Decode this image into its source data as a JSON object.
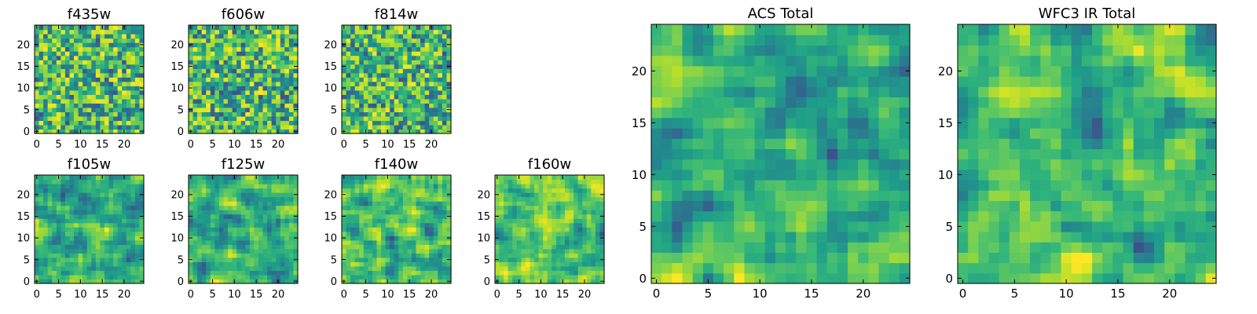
{
  "chart_data": [
    {
      "type": "heatmap",
      "title": "f435w",
      "xticks": [
        "0",
        "5",
        "10",
        "15",
        "20"
      ],
      "yticks": [
        "0",
        "5",
        "10",
        "15",
        "20"
      ],
      "xlim": [
        0,
        24
      ],
      "ylim": [
        0,
        24
      ],
      "grid": false,
      "colormap": "viridis"
    },
    {
      "type": "heatmap",
      "title": "f606w",
      "xticks": [
        "0",
        "5",
        "10",
        "15",
        "20"
      ],
      "yticks": [
        "0",
        "5",
        "10",
        "15",
        "20"
      ],
      "xlim": [
        0,
        24
      ],
      "ylim": [
        0,
        24
      ],
      "grid": false,
      "colormap": "viridis"
    },
    {
      "type": "heatmap",
      "title": "f814w",
      "xticks": [
        "0",
        "5",
        "10",
        "15",
        "20"
      ],
      "yticks": [
        "0",
        "5",
        "10",
        "15",
        "20"
      ],
      "xlim": [
        0,
        24
      ],
      "ylim": [
        0,
        24
      ],
      "grid": false,
      "colormap": "viridis"
    },
    {
      "type": "heatmap",
      "title": "f105w",
      "xticks": [
        "0",
        "5",
        "10",
        "15",
        "20"
      ],
      "yticks": [
        "0",
        "5",
        "10",
        "15",
        "20"
      ],
      "xlim": [
        0,
        24
      ],
      "ylim": [
        0,
        24
      ],
      "grid": false,
      "colormap": "viridis"
    },
    {
      "type": "heatmap",
      "title": "f125w",
      "xticks": [
        "0",
        "5",
        "10",
        "15",
        "20"
      ],
      "yticks": [
        "0",
        "5",
        "10",
        "15",
        "20"
      ],
      "xlim": [
        0,
        24
      ],
      "ylim": [
        0,
        24
      ],
      "grid": false,
      "colormap": "viridis"
    },
    {
      "type": "heatmap",
      "title": "f140w",
      "xticks": [
        "0",
        "5",
        "10",
        "15",
        "20"
      ],
      "yticks": [
        "0",
        "5",
        "10",
        "15",
        "20"
      ],
      "xlim": [
        0,
        24
      ],
      "ylim": [
        0,
        24
      ],
      "grid": false,
      "colormap": "viridis"
    },
    {
      "type": "heatmap",
      "title": "f160w",
      "xticks": [
        "0",
        "5",
        "10",
        "15",
        "20"
      ],
      "yticks": [
        "0",
        "5",
        "10",
        "15",
        "20"
      ],
      "xlim": [
        0,
        24
      ],
      "ylim": [
        0,
        24
      ],
      "grid": false,
      "colormap": "viridis"
    },
    {
      "type": "heatmap",
      "title": "ACS Total",
      "xticks": [
        "0",
        "5",
        "10",
        "15",
        "20"
      ],
      "yticks": [
        "0",
        "5",
        "10",
        "15",
        "20"
      ],
      "xlim": [
        0,
        24
      ],
      "ylim": [
        0,
        24
      ],
      "grid": false,
      "colormap": "viridis"
    },
    {
      "type": "heatmap",
      "title": "WFC3 IR Total",
      "xticks": [
        "0",
        "5",
        "10",
        "15",
        "20"
      ],
      "yticks": [
        "0",
        "5",
        "10",
        "15",
        "20"
      ],
      "xlim": [
        0,
        24
      ],
      "ylim": [
        0,
        24
      ],
      "grid": false,
      "colormap": "viridis"
    }
  ]
}
